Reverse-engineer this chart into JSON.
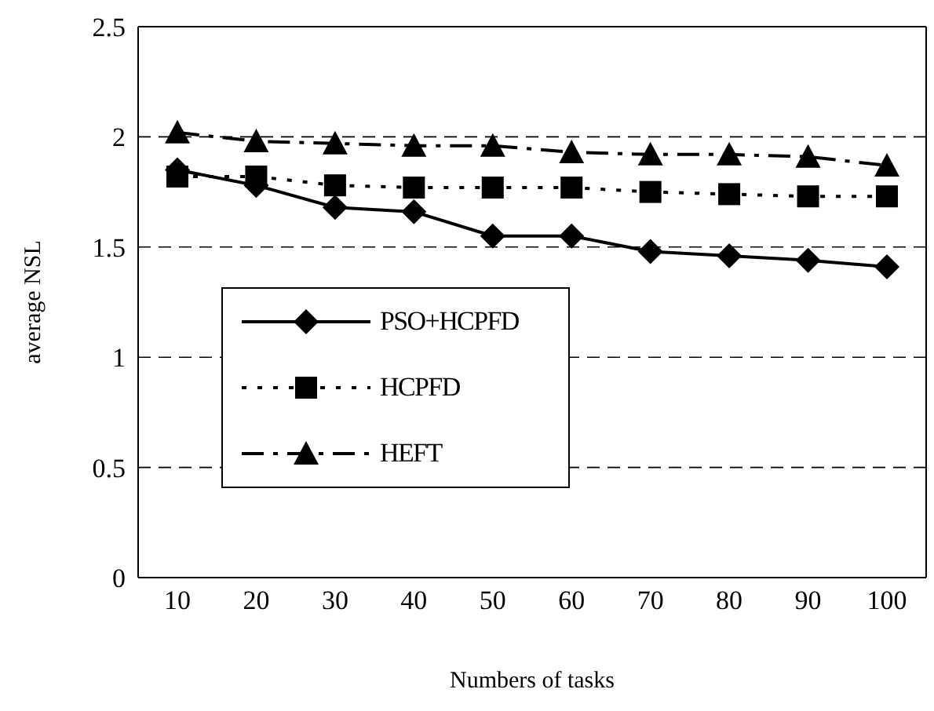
{
  "chart_data": {
    "type": "line",
    "xlabel": "Numbers of tasks",
    "ylabel": "average NSL",
    "categories": [
      "10",
      "20",
      "30",
      "40",
      "50",
      "60",
      "70",
      "80",
      "90",
      "100"
    ],
    "series": [
      {
        "name": "PSO+HCPFD",
        "color": "#000000",
        "marker": "diamond",
        "line_style": "solid",
        "values": [
          1.85,
          1.78,
          1.68,
          1.66,
          1.55,
          1.55,
          1.48,
          1.46,
          1.44,
          1.41
        ]
      },
      {
        "name": "HCPFD",
        "color": "#000000",
        "marker": "square",
        "line_style": "dotted",
        "values": [
          1.82,
          1.82,
          1.78,
          1.77,
          1.77,
          1.77,
          1.75,
          1.74,
          1.73,
          1.73
        ]
      },
      {
        "name": "HEFT",
        "color": "#000000",
        "marker": "triangle",
        "line_style": "dashed",
        "values": [
          2.02,
          1.98,
          1.97,
          1.96,
          1.96,
          1.93,
          1.92,
          1.92,
          1.91,
          1.87
        ]
      }
    ],
    "ylim": [
      0,
      2.5
    ],
    "yticks": [
      0,
      0.5,
      1,
      1.5,
      2,
      2.5
    ],
    "grid": "y",
    "legend": "center left"
  }
}
